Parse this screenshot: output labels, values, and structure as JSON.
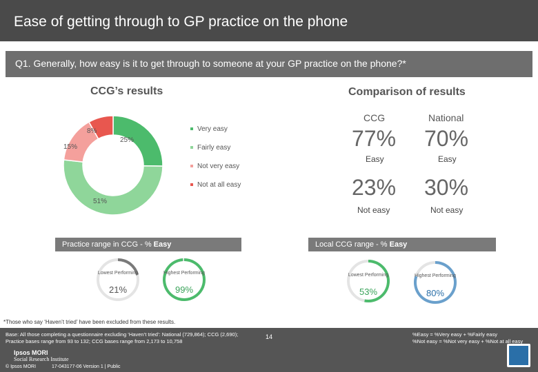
{
  "header": {
    "title": "Ease of getting through to GP practice on the phone"
  },
  "question": {
    "text": "Q1. Generally, how easy is it to get through to someone at your GP practice on the phone?*"
  },
  "ccg_results": {
    "title": "CCG’s results",
    "chart_data": {
      "type": "pie",
      "categories": [
        "Very easy",
        "Fairly easy",
        "Not very easy",
        "Not at all easy"
      ],
      "values": [
        25,
        51,
        15,
        8
      ],
      "labels": [
        "25%",
        "51%",
        "15%",
        "8%"
      ],
      "colors": [
        "#4cbb6c",
        "#8fd69a",
        "#f4a09c",
        "#e8574f"
      ]
    }
  },
  "comparison": {
    "title": "Comparison of results",
    "col_ccg": "CCG",
    "col_national": "National",
    "easy_ccg": "77%",
    "easy_national": "70%",
    "easy_label": "Easy",
    "noteasy_ccg": "23%",
    "noteasy_national": "30%",
    "noteasy_label": "Not easy"
  },
  "practice_range": {
    "header_prefix": "Practice range in CCG - % ",
    "header_bold": "Easy",
    "lowest_label": "Lowest Performing",
    "lowest_value": "21%",
    "lowest_fraction": 0.21,
    "highest_label": "Highest Performing",
    "highest_value": "99%",
    "highest_fraction": 0.99
  },
  "local_range": {
    "header_prefix": "Local CCG range - % ",
    "header_bold": "Easy",
    "lowest_label": "Lowest Performing",
    "lowest_value": "53%",
    "lowest_fraction": 0.53,
    "highest_label": "Highest Performing",
    "highest_value": "80%",
    "highest_fraction": 0.8
  },
  "footnote": "*Those who say ‘Haven’t tried’ have been excluded from these results.",
  "footer": {
    "base_line1": "Base: All those completing a questionnaire excluding ‘Haven’t tried’: National (729,864); CCG (2,690);",
    "base_line2": "Practice bases range from 93 to 132; CCG bases range from 2,173 to 10,758",
    "def_line1": "%Easy = %Very easy + %Fairly easy",
    "def_line2": "%Not easy = %Not very easy + %Not at all easy",
    "page": "14",
    "brand1": "Ipsos MORI",
    "brand2": "Social Research Institute",
    "copyright": "© Ipsos MORI",
    "version": "17-043177-06 Version 1 | Public"
  }
}
